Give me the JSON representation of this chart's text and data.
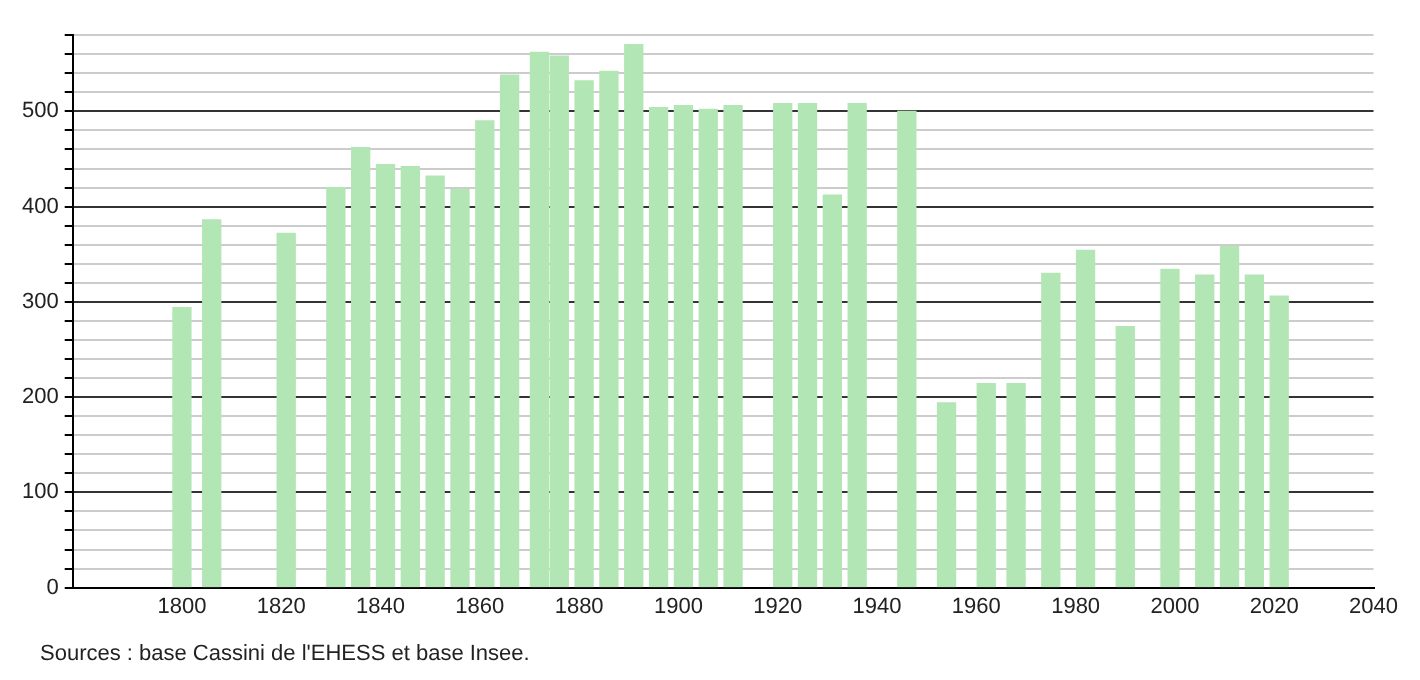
{
  "chart_data": {
    "type": "bar",
    "x": [
      1800,
      1806,
      1821,
      1831,
      1836,
      1841,
      1846,
      1851,
      1856,
      1861,
      1866,
      1872,
      1876,
      1881,
      1886,
      1891,
      1896,
      1901,
      1906,
      1911,
      1921,
      1926,
      1931,
      1936,
      1946,
      1954,
      1962,
      1968,
      1975,
      1982,
      1990,
      1999,
      2006,
      2011,
      2016,
      2021
    ],
    "values": [
      294,
      386,
      372,
      420,
      462,
      444,
      442,
      432,
      418,
      490,
      538,
      562,
      558,
      532,
      542,
      570,
      504,
      506,
      502,
      506,
      508,
      508,
      412,
      508,
      500,
      194,
      214,
      214,
      330,
      354,
      274,
      334,
      328,
      358,
      328,
      306
    ],
    "color": "#b3e6b5",
    "xlim": [
      1778,
      2040
    ],
    "xticks": [
      1800,
      1820,
      1840,
      1860,
      1880,
      1900,
      1920,
      1940,
      1960,
      1980,
      2000,
      2020,
      2040
    ],
    "ylim": [
      0,
      580
    ],
    "yticks": [
      0,
      {
        "value": 20,
        "label": null
      },
      {
        "value": 40,
        "label": null
      },
      {
        "value": 60,
        "label": null
      },
      {
        "value": 80,
        "label": null
      },
      100,
      {
        "value": 120,
        "label": null
      },
      {
        "value": 140,
        "label": null
      },
      {
        "value": 160,
        "label": null
      },
      {
        "value": 180,
        "label": null
      },
      200,
      {
        "value": 220,
        "label": null
      },
      {
        "value": 240,
        "label": null
      },
      {
        "value": 260,
        "label": null
      },
      {
        "value": 280,
        "label": null
      },
      300,
      {
        "value": 320,
        "label": null
      },
      {
        "value": 340,
        "label": null
      },
      {
        "value": 360,
        "label": null
      },
      {
        "value": 380,
        "label": null
      },
      400,
      {
        "value": 420,
        "label": null
      },
      {
        "value": 440,
        "label": null
      },
      {
        "value": 460,
        "label": null
      },
      {
        "value": 480,
        "label": null
      },
      500,
      {
        "value": 520,
        "label": null
      },
      {
        "value": 540,
        "label": null
      },
      {
        "value": 560,
        "label": null
      },
      {
        "value": 580,
        "label": null
      }
    ],
    "grid": "y",
    "annotations": [
      "Sources : base Cassini de l'EHESS et base Insee."
    ]
  }
}
